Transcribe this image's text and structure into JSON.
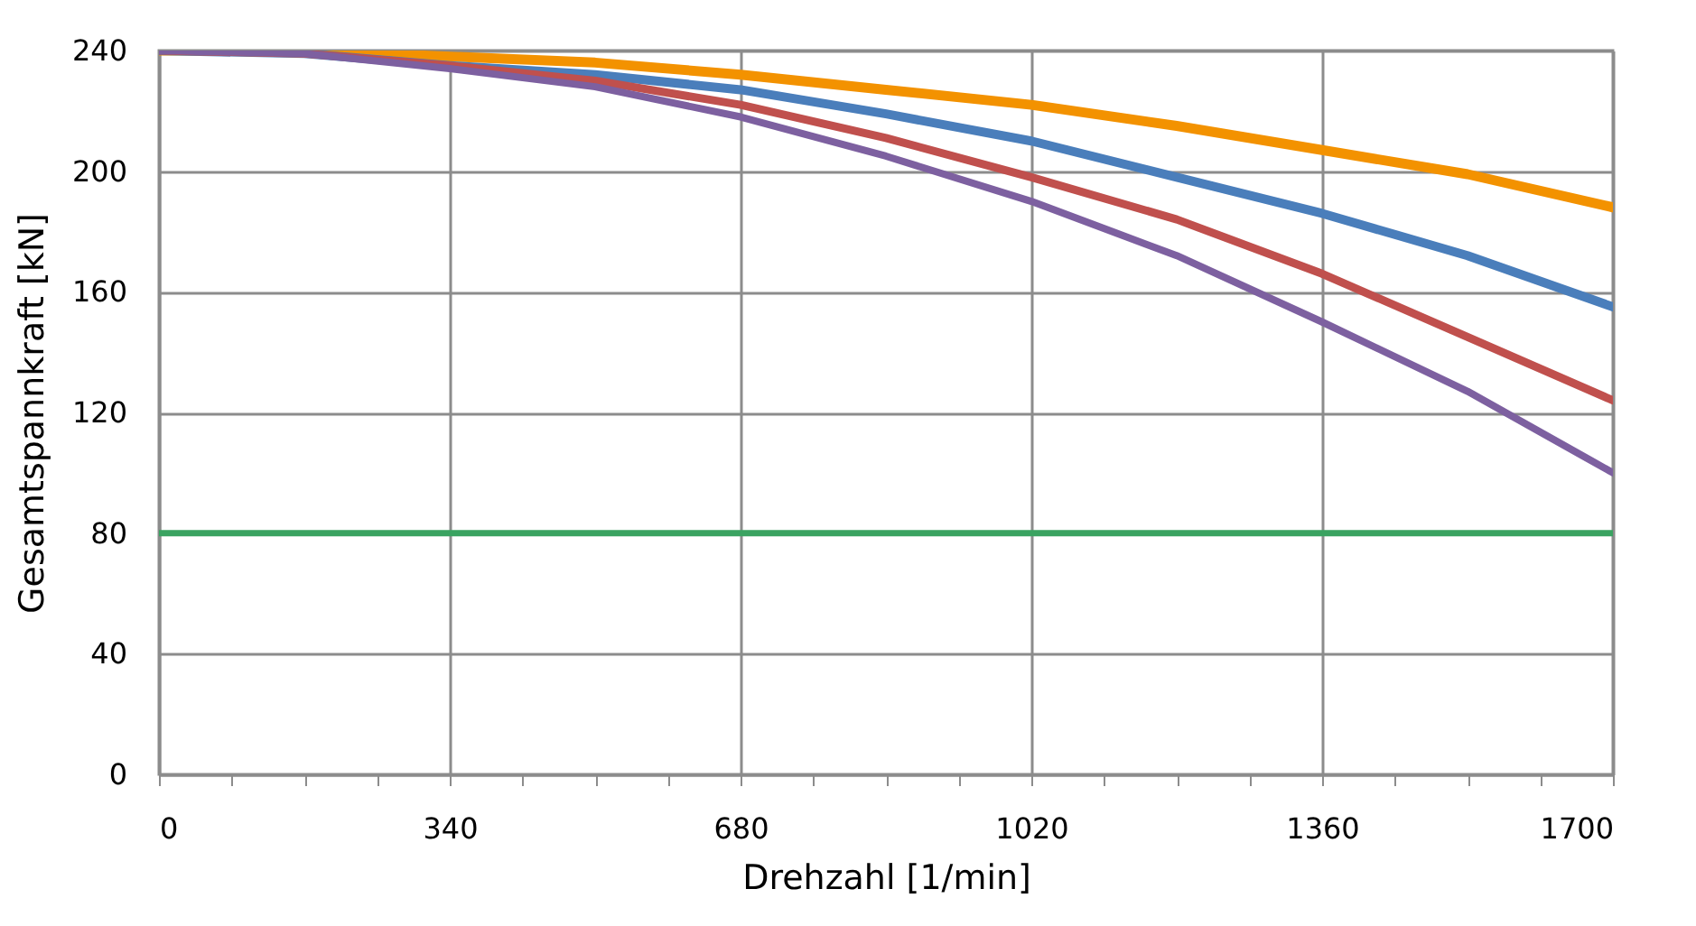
{
  "chart_data": {
    "type": "line",
    "xlabel": "Drehzahl [1/min]",
    "ylabel": "Gesamtspannkraft [kN]",
    "x": [
      0,
      170,
      340,
      510,
      680,
      850,
      1020,
      1190,
      1360,
      1530,
      1700
    ],
    "series": [
      {
        "color": "#f39200",
        "values": [
          240,
          240,
          238,
          236,
          232,
          227,
          222,
          215,
          207,
          199,
          188
        ]
      },
      {
        "color": "#4a7ebb",
        "values": [
          240,
          239,
          235,
          232,
          227,
          219,
          210,
          198,
          186,
          172,
          155
        ]
      },
      {
        "color": "#c0504d",
        "values": [
          240,
          239,
          235,
          230,
          222,
          211,
          198,
          184,
          166,
          145,
          124
        ]
      },
      {
        "color": "#7d60a0",
        "values": [
          240,
          239,
          234,
          228,
          218,
          205,
          190,
          172,
          150,
          127,
          100
        ]
      },
      {
        "color": "#3aa361",
        "x": [
          0,
          1700
        ],
        "values": [
          80,
          80
        ]
      }
    ],
    "xlim": [
      0,
      1700
    ],
    "ylim": [
      0,
      240
    ],
    "xticks": [
      0,
      {
        "value": 85,
        "label": null
      },
      {
        "value": 170,
        "label": null
      },
      {
        "value": 255,
        "label": null
      },
      340,
      {
        "value": 425,
        "label": null
      },
      {
        "value": 510,
        "label": null
      },
      {
        "value": 595,
        "label": null
      },
      680,
      {
        "value": 765,
        "label": null
      },
      {
        "value": 850,
        "label": null
      },
      {
        "value": 935,
        "label": null
      },
      1020,
      {
        "value": 1105,
        "label": null
      },
      {
        "value": 1190,
        "label": null
      },
      {
        "value": 1275,
        "label": null
      },
      1360,
      {
        "value": 1445,
        "label": null
      },
      {
        "value": 1530,
        "label": null
      },
      {
        "value": 1615,
        "label": null
      },
      1700
    ],
    "yticks": [
      0,
      40,
      80,
      120,
      160,
      200,
      240
    ],
    "grid": true,
    "legend": false,
    "marker": "none",
    "line_style": "solid"
  }
}
